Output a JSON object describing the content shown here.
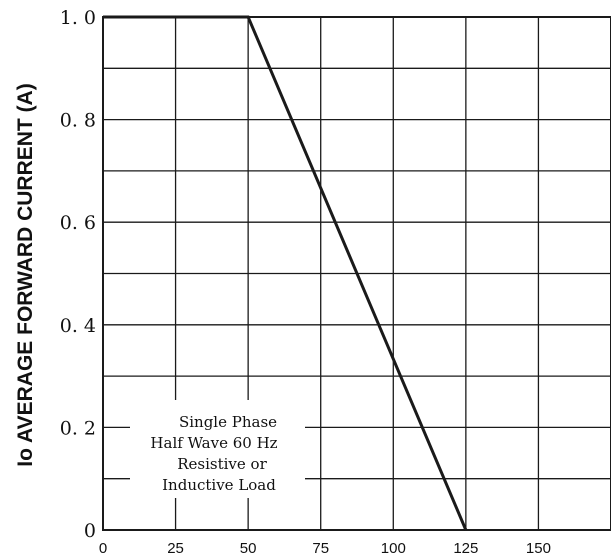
{
  "chart_data": {
    "type": "line",
    "title": "",
    "xlabel": "",
    "ylabel": "Io AVERAGE FORWARD CURRENT (A)",
    "xlim": [
      0,
      175
    ],
    "ylim": [
      0,
      1.0
    ],
    "x_ticks": [
      0,
      25,
      50,
      75,
      100,
      125,
      150
    ],
    "x_tick_labels": [
      "0",
      "25",
      "50",
      "75",
      "100",
      "125",
      "150"
    ],
    "y_ticks": [
      0,
      0.2,
      0.4,
      0.6,
      0.8,
      1.0
    ],
    "y_tick_labels": [
      "0",
      "0. 2",
      "0. 4",
      "0. 6",
      "0. 8",
      "1. 0"
    ],
    "grid": true,
    "series": [
      {
        "x": [
          0,
          50,
          125
        ],
        "y": [
          1.0,
          1.0,
          0.0
        ]
      }
    ],
    "annotation": [
      "Single Phase",
      "Half Wave 60 Hz",
      "Resistive or",
      "Inductive Load"
    ],
    "line_color": "#1a1a1a",
    "grid_color": "#1a1a1a"
  }
}
